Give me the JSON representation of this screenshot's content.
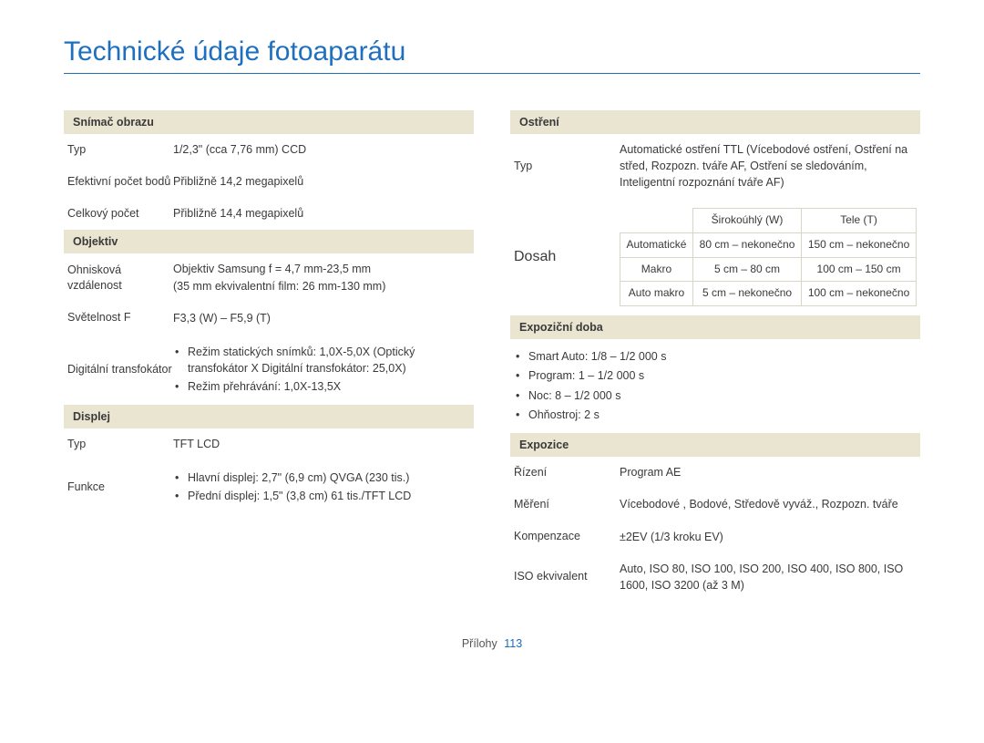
{
  "title": "Technické údaje fotoaparátu",
  "footer": {
    "label": "Přílohy",
    "page": "113"
  },
  "colors": {
    "accent": "#1f6fbf",
    "section_bg": "#eae5d0",
    "table_border": "#d8d5c6",
    "text": "#3a3a3a"
  },
  "left": {
    "sensor": {
      "head": "Snímač obrazu",
      "rows": [
        {
          "label": "Typ",
          "value": "1/2,3\" (cca 7,76 mm) CCD"
        },
        {
          "label": "Efektivní počet bodů",
          "value": "Přibližně 14,2 megapixelů"
        },
        {
          "label": "Celkový počet",
          "value": "Přibližně 14,4 megapixelů"
        }
      ]
    },
    "lens": {
      "head": "Objektiv",
      "focal": {
        "label": "Ohnisková vzdálenost",
        "value": "Objektiv Samsung f = 4,7 mm-23,5 mm\n(35 mm ekvivalentní film: 26 mm-130 mm)"
      },
      "aperture": {
        "label": "Světelnost F",
        "value": "F3,3 (W) – F5,9 (T)"
      },
      "digizoom": {
        "label": "Digitální transfokátor",
        "items": [
          "Režim statických snímků: 1,0X-5,0X (Optický transfokátor X Digitální transfokátor: 25,0X)",
          "Režim přehrávání: 1,0X-13,5X"
        ]
      }
    },
    "display": {
      "head": "Displej",
      "type": {
        "label": "Typ",
        "value": "TFT LCD"
      },
      "func": {
        "label": "Funkce",
        "items": [
          "Hlavní displej: 2,7\" (6,9 cm) QVGA (230 tis.)",
          "Přední displej: 1,5\" (3,8 cm) 61 tis./TFT LCD"
        ]
      }
    }
  },
  "right": {
    "focus": {
      "head": "Ostření",
      "type": {
        "label": "Typ",
        "value": "Automatické ostření TTL (Vícebodové ostření, Ostření na střed, Rozpozn. tváře AF, Ostření se sledováním, Inteligentní rozpoznání tváře AF)"
      },
      "range": {
        "label": "Dosah",
        "cols": [
          "",
          "Širokoúhlý (W)",
          "Tele (T)"
        ],
        "rows": [
          [
            "Automatické",
            "80 cm – nekonečno",
            "150 cm – nekonečno"
          ],
          [
            "Makro",
            "5 cm – 80 cm",
            "100 cm – 150 cm"
          ],
          [
            "Auto makro",
            "5 cm – nekonečno",
            "100 cm – nekonečno"
          ]
        ]
      }
    },
    "shutter": {
      "head": "Expoziční doba",
      "items": [
        "Smart Auto: 1/8 – 1/2 000 s",
        "Program: 1 – 1/2 000 s",
        "Noc: 8 – 1/2 000 s",
        "Ohňostroj: 2 s"
      ]
    },
    "exposure": {
      "head": "Expozice",
      "rows": [
        {
          "label": "Řízení",
          "value": "Program AE"
        },
        {
          "label": "Měření",
          "value": "Vícebodové , Bodové, Středově vyváž., Rozpozn. tváře"
        },
        {
          "label": "Kompenzace",
          "value": "±2EV (1/3 kroku EV)"
        },
        {
          "label": "ISO ekvivalent",
          "value": "Auto, ISO 80, ISO 100, ISO 200, ISO 400, ISO 800, ISO 1600, ISO 3200 (až 3 M)"
        }
      ]
    }
  }
}
